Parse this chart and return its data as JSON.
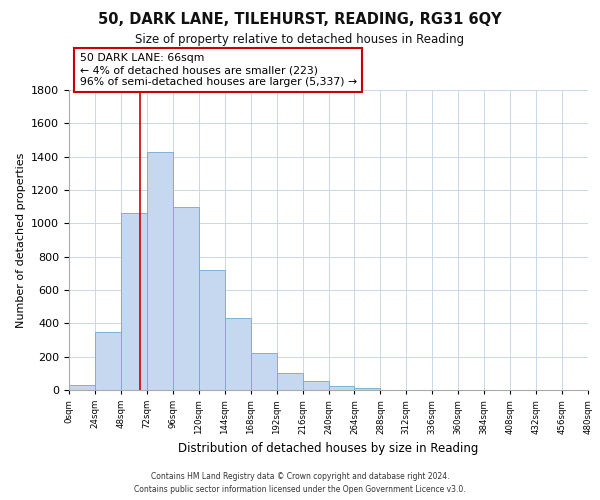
{
  "title": "50, DARK LANE, TILEHURST, READING, RG31 6QY",
  "subtitle": "Size of property relative to detached houses in Reading",
  "xlabel": "Distribution of detached houses by size in Reading",
  "ylabel": "Number of detached properties",
  "bin_edges": [
    0,
    24,
    48,
    72,
    96,
    120,
    144,
    168,
    192,
    216,
    240,
    264,
    288,
    312,
    336,
    360,
    384,
    408,
    432,
    456,
    480
  ],
  "bar_heights": [
    30,
    350,
    1060,
    1430,
    1100,
    720,
    435,
    220,
    105,
    55,
    25,
    10,
    0,
    0,
    0,
    0,
    0,
    0,
    0,
    0
  ],
  "bar_color": "#c5d8f0",
  "bar_edge_color": "#6aaad4",
  "property_line_x": 66,
  "property_line_color": "#cc0000",
  "annotation_line1": "50 DARK LANE: 66sqm",
  "annotation_line2": "← 4% of detached houses are smaller (223)",
  "annotation_line3": "96% of semi-detached houses are larger (5,337) →",
  "annotation_box_color": "#ffffff",
  "annotation_box_edge_color": "#cc0000",
  "ylim": [
    0,
    1800
  ],
  "yticks": [
    0,
    200,
    400,
    600,
    800,
    1000,
    1200,
    1400,
    1600,
    1800
  ],
  "tick_labels": [
    "0sqm",
    "24sqm",
    "48sqm",
    "72sqm",
    "96sqm",
    "120sqm",
    "144sqm",
    "168sqm",
    "192sqm",
    "216sqm",
    "240sqm",
    "264sqm",
    "288sqm",
    "312sqm",
    "336sqm",
    "360sqm",
    "384sqm",
    "408sqm",
    "432sqm",
    "456sqm",
    "480sqm"
  ],
  "footer_line1": "Contains HM Land Registry data © Crown copyright and database right 2024.",
  "footer_line2": "Contains public sector information licensed under the Open Government Licence v3.0.",
  "background_color": "#ffffff",
  "grid_color": "#c8d8e8"
}
